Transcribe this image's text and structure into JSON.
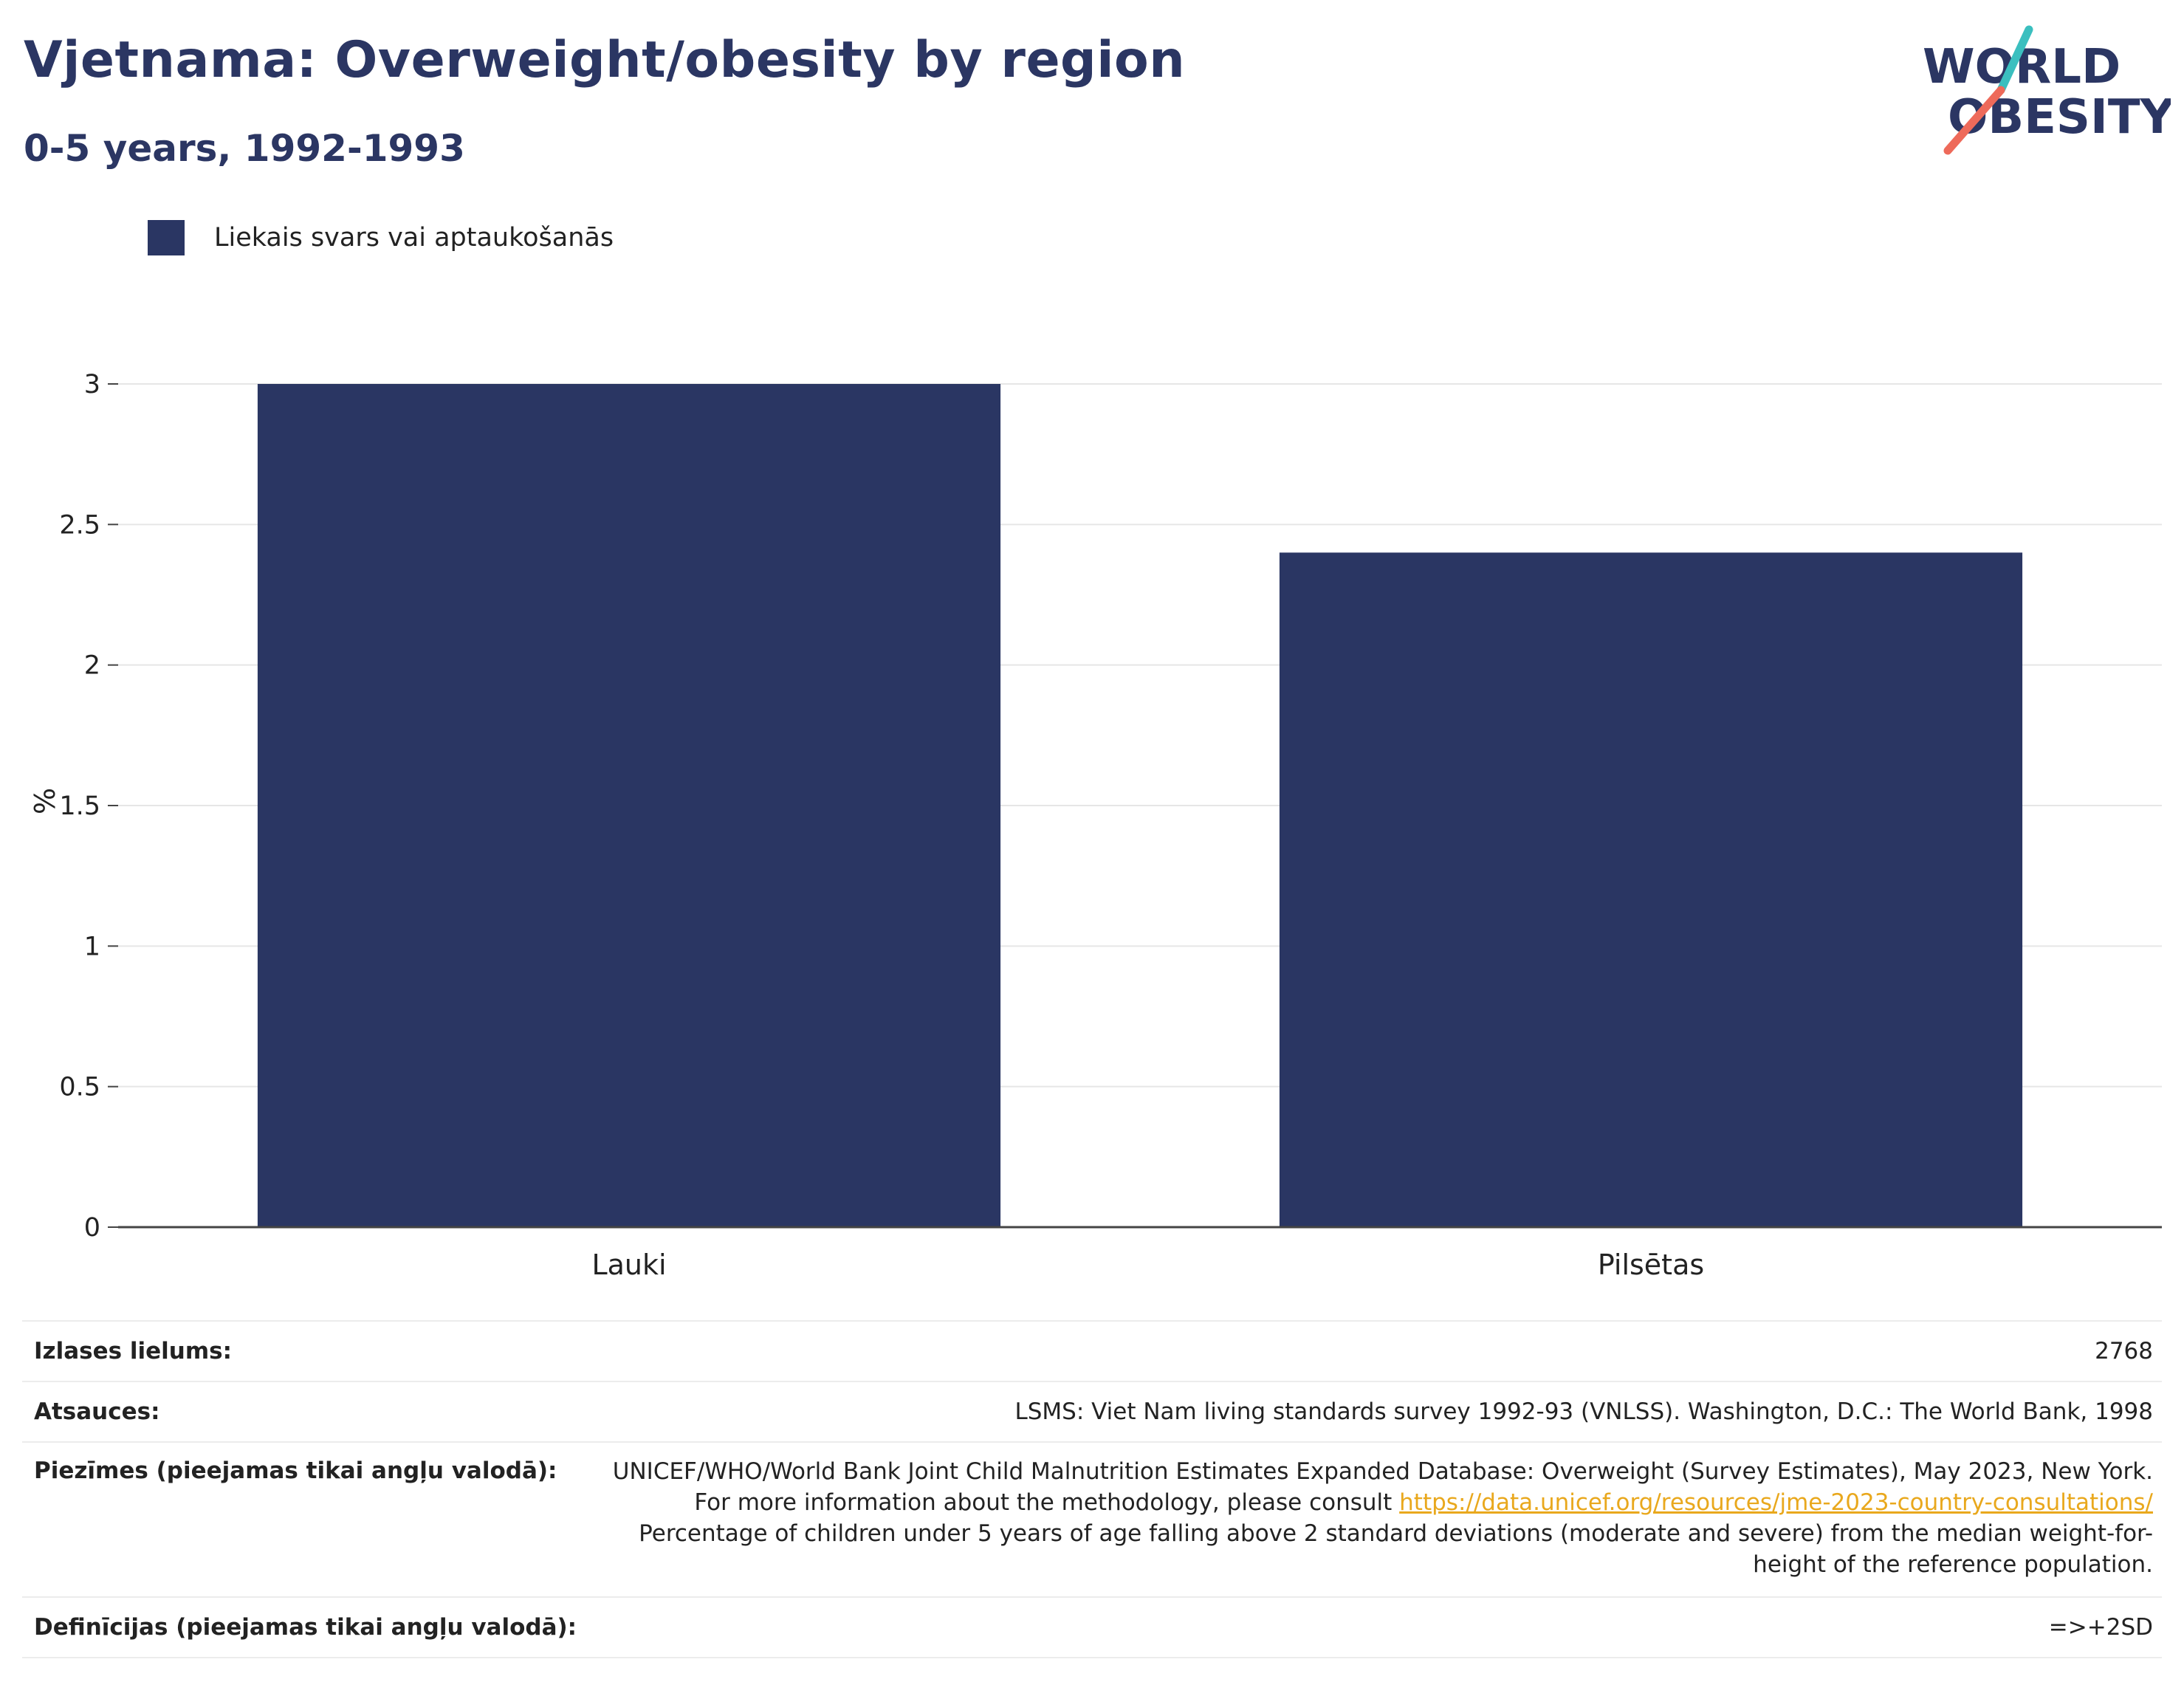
{
  "header": {
    "title": "Vjetnama: Overweight/obesity by region",
    "subtitle": "0-5 years, 1992-1993"
  },
  "logo": {
    "line1": "WORLD",
    "line2": "OBESITY"
  },
  "colors": {
    "bar": "#2a3663",
    "title": "#2b3663",
    "link": "#e9a81d",
    "logo_teal": "#3bbfbf",
    "logo_coral": "#ee6a5a"
  },
  "chart_data": {
    "type": "bar",
    "categories": [
      "Lauki",
      "Pilsētas"
    ],
    "series": [
      {
        "name": "Liekais svars vai aptaukošanās",
        "values": [
          3.0,
          2.4
        ]
      }
    ],
    "ylabel": "%",
    "ylim": [
      0,
      3
    ],
    "yticks": [
      "0",
      "0.5",
      "1",
      "1.5",
      "2",
      "2.5",
      "3"
    ],
    "grid": true,
    "legend_position": "top-left"
  },
  "footer": {
    "sample_label": "Izlases lielums:",
    "sample_value": "2768",
    "sources_label": "Atsauces:",
    "sources_value": "LSMS: Viet Nam living standards survey 1992-93 (VNLSS). Washington, D.C.: The World Bank, 1998",
    "notes_label": "Piezīmes (pieejamas tikai angļu valodā):",
    "notes_text1": "UNICEF/WHO/World Bank Joint Child Malnutrition Estimates Expanded Database: Overweight (Survey Estimates), May 2023, New York. For more information about the methodology, please consult ",
    "notes_link": "https://data.unicef.org/resources/jme-2023-country-consultations/",
    "notes_text2": " Percentage of children under 5 years of age falling above 2 standard deviations (moderate and severe) from the median weight-for-height of the reference population.",
    "definitions_label": "Definīcijas (pieejamas tikai angļu valodā):",
    "definitions_value": "=>+2SD"
  }
}
